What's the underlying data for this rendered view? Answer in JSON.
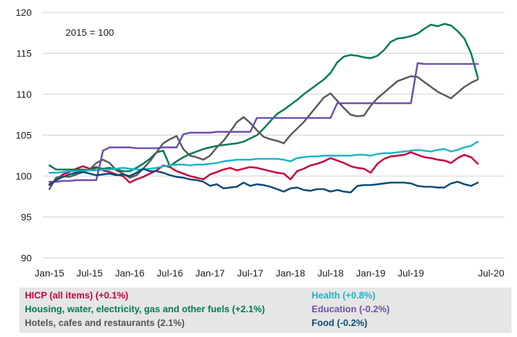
{
  "chart_data": {
    "type": "line",
    "annotation": "2015 = 100",
    "ylim": [
      90,
      120
    ],
    "yticks": [
      90,
      95,
      100,
      105,
      110,
      115,
      120
    ],
    "xlim": [
      "2014-12",
      "2020-09"
    ],
    "xticks": [
      {
        "date": "2015-01",
        "label": "Jan-15"
      },
      {
        "date": "2015-07",
        "label": "Jul-15"
      },
      {
        "date": "2016-01",
        "label": "Jan-16"
      },
      {
        "date": "2016-07",
        "label": "Jul-16"
      },
      {
        "date": "2017-01",
        "label": "Jan-17"
      },
      {
        "date": "2017-07",
        "label": "Jul-17"
      },
      {
        "date": "2018-01",
        "label": "Jan-18"
      },
      {
        "date": "2018-07",
        "label": "Jul-18"
      },
      {
        "date": "2019-01",
        "label": "Jan-19"
      },
      {
        "date": "2019-07",
        "label": "Jul-19"
      },
      {
        "date": "2020-07",
        "label": "Jul-20"
      }
    ],
    "grid": "horizontal",
    "legend_position": "bottom",
    "series": [
      {
        "name": "HICP (all items) (+0.1%)",
        "color": "#c8003c",
        "start": "2015-01",
        "values": [
          99.0,
          99.5,
          100.2,
          100.5,
          100.9,
          101.2,
          100.9,
          101.1,
          100.7,
          100.5,
          100.2,
          100.0,
          99.2,
          99.6,
          99.9,
          100.3,
          100.7,
          101.3,
          101.1,
          100.6,
          100.3,
          100.0,
          99.8,
          99.6,
          100.2,
          100.5,
          100.8,
          101.0,
          100.7,
          100.9,
          101.1,
          101.0,
          100.8,
          100.6,
          100.4,
          100.3,
          99.6,
          100.6,
          100.9,
          101.3,
          101.5,
          101.8,
          102.2,
          101.9,
          101.6,
          101.2,
          101.0,
          100.9,
          100.4,
          101.5,
          102.1,
          102.4,
          102.5,
          102.6,
          102.9,
          102.6,
          102.3,
          102.2,
          102.0,
          101.9,
          101.6,
          102.2,
          102.6,
          102.3,
          101.5
        ]
      },
      {
        "name": "Housing, water, electricity, gas and other fuels (+2.1%)",
        "color": "#007a55",
        "start": "2015-01",
        "values": [
          101.3,
          100.8,
          100.8,
          100.8,
          100.8,
          100.8,
          100.7,
          101.0,
          100.9,
          101.0,
          100.8,
          100.6,
          100.6,
          101.0,
          101.5,
          102.1,
          102.9,
          103.1,
          101.2,
          101.8,
          102.3,
          102.7,
          103.0,
          103.3,
          103.5,
          103.7,
          103.8,
          103.9,
          104.0,
          104.2,
          104.6,
          105.0,
          105.8,
          106.7,
          107.6,
          108.1,
          108.7,
          109.3,
          110.0,
          110.6,
          111.2,
          111.8,
          112.6,
          113.9,
          114.6,
          114.8,
          114.7,
          114.5,
          114.4,
          114.7,
          115.4,
          116.4,
          116.8,
          116.9,
          117.1,
          117.4,
          118.0,
          118.5,
          118.3,
          118.6,
          118.4,
          117.7,
          116.8,
          115.0,
          112.0
        ]
      },
      {
        "name": "Hotels, cafes and restaurants (2.1%)",
        "color": "#5a5a5a",
        "start": "2015-01",
        "values": [
          98.4,
          99.8,
          100.0,
          99.9,
          100.2,
          100.5,
          100.8,
          101.6,
          102.0,
          101.6,
          100.7,
          100.3,
          99.8,
          100.1,
          100.9,
          101.8,
          102.9,
          104.0,
          104.5,
          104.9,
          103.3,
          102.5,
          102.3,
          102.0,
          102.5,
          103.5,
          104.3,
          105.4,
          106.6,
          107.2,
          106.5,
          105.6,
          104.8,
          104.5,
          104.3,
          104.0,
          105.0,
          105.8,
          106.6,
          107.6,
          108.6,
          109.6,
          110.1,
          109.2,
          108.3,
          107.5,
          107.3,
          107.4,
          108.6,
          109.5,
          110.2,
          110.9,
          111.6,
          111.9,
          112.2,
          112.1,
          111.5,
          110.9,
          110.3,
          109.9,
          109.5,
          110.2,
          110.9,
          111.4,
          111.8
        ]
      },
      {
        "name": "Health (+0.8%)",
        "color": "#1eb4c8",
        "start": "2015-01",
        "values": [
          100.4,
          100.4,
          100.5,
          100.6,
          100.6,
          100.6,
          100.7,
          100.7,
          100.8,
          100.8,
          100.9,
          101.0,
          100.9,
          100.8,
          100.8,
          100.9,
          101.0,
          101.2,
          101.3,
          101.4,
          101.4,
          101.3,
          101.4,
          101.4,
          101.5,
          101.6,
          101.8,
          101.9,
          102.0,
          102.0,
          102.0,
          102.1,
          102.1,
          102.1,
          102.1,
          102.0,
          101.8,
          102.2,
          102.3,
          102.4,
          102.4,
          102.5,
          102.5,
          102.5,
          102.5,
          102.5,
          102.6,
          102.6,
          102.5,
          102.7,
          102.8,
          102.8,
          102.9,
          103.0,
          103.1,
          103.2,
          103.1,
          103.0,
          103.2,
          103.3,
          103.0,
          103.2,
          103.5,
          103.7,
          104.2
        ]
      },
      {
        "name": "Education (-0.2%)",
        "color": "#6e50aa",
        "start": "2015-01",
        "values": [
          99.3,
          99.3,
          99.4,
          99.4,
          99.5,
          99.5,
          99.5,
          99.5,
          103.1,
          103.5,
          103.5,
          103.5,
          103.5,
          103.4,
          103.4,
          103.4,
          103.4,
          103.5,
          103.5,
          103.5,
          105.1,
          105.3,
          105.3,
          105.3,
          105.3,
          105.4,
          105.4,
          105.4,
          105.4,
          105.4,
          105.4,
          107.1,
          107.1,
          107.1,
          107.1,
          107.1,
          107.1,
          107.1,
          107.1,
          107.1,
          107.1,
          107.1,
          107.1,
          108.9,
          108.9,
          108.9,
          108.9,
          108.9,
          108.9,
          108.9,
          108.9,
          108.9,
          108.9,
          108.9,
          108.9,
          113.8,
          113.7,
          113.7,
          113.7,
          113.7,
          113.7,
          113.7,
          113.7,
          113.7,
          113.7
        ]
      },
      {
        "name": "Food (-0.2%)",
        "color": "#0a4b78",
        "start": "2015-01",
        "values": [
          98.9,
          99.5,
          99.9,
          100.2,
          100.4,
          100.5,
          100.3,
          100.1,
          100.2,
          100.3,
          100.1,
          100.2,
          100.0,
          100.4,
          100.9,
          100.6,
          100.6,
          100.4,
          100.1,
          99.9,
          99.8,
          99.6,
          99.5,
          99.3,
          98.8,
          99.0,
          98.5,
          98.6,
          98.7,
          99.2,
          98.8,
          99.0,
          98.9,
          98.7,
          98.4,
          98.1,
          98.5,
          98.6,
          98.3,
          98.2,
          98.4,
          98.4,
          98.1,
          98.3,
          98.1,
          98.0,
          98.8,
          98.9,
          98.9,
          99.0,
          99.1,
          99.2,
          99.2,
          99.2,
          99.1,
          98.8,
          98.7,
          98.7,
          98.6,
          98.6,
          99.1,
          99.3,
          99.0,
          98.8,
          99.2
        ]
      }
    ]
  }
}
